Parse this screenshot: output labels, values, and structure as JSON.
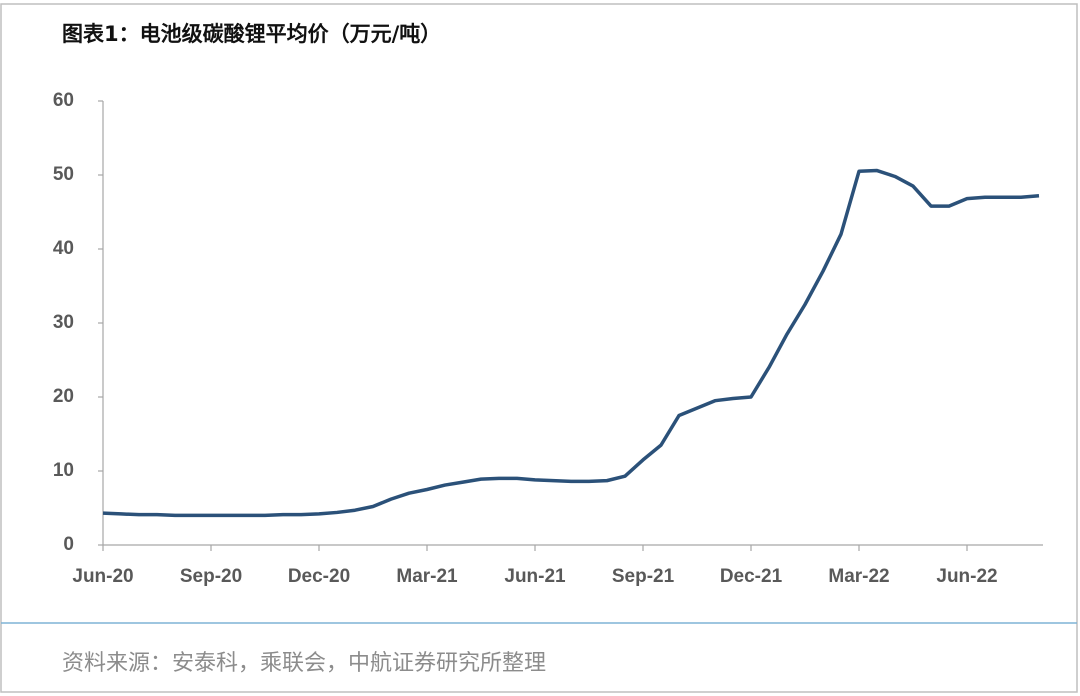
{
  "chart_data": {
    "type": "line",
    "title": "图表1：电池级碳酸锂平均价（万元/吨）",
    "source": "资料来源：安泰科，乘联会，中航证券研究所整理",
    "categories": [
      "Jun-20",
      null,
      null,
      null,
      null,
      null,
      "Sep-20",
      null,
      null,
      null,
      null,
      null,
      "Dec-20",
      null,
      null,
      null,
      null,
      null,
      "Mar-21",
      null,
      null,
      null,
      null,
      null,
      "Jun-21",
      null,
      null,
      null,
      null,
      null,
      "Sep-21",
      null,
      null,
      null,
      null,
      null,
      "Dec-21",
      null,
      null,
      null,
      null,
      null,
      "Mar-22",
      null,
      null,
      null,
      null,
      null,
      "Jun-22",
      null,
      null,
      null,
      null
    ],
    "series": [
      {
        "color": "#2b5179",
        "values": [
          4.3,
          4.2,
          4.1,
          4.1,
          4.0,
          4.0,
          4.0,
          4.0,
          4.0,
          4.0,
          4.1,
          4.1,
          4.2,
          4.4,
          4.7,
          5.2,
          6.2,
          7.0,
          7.5,
          8.1,
          8.5,
          8.9,
          9.0,
          9.0,
          8.8,
          8.7,
          8.6,
          8.6,
          8.7,
          9.3,
          11.5,
          13.5,
          17.5,
          18.5,
          19.5,
          19.8,
          20.0,
          24.0,
          28.5,
          32.5,
          37.0,
          42.0,
          50.5,
          50.6,
          49.8,
          48.5,
          45.8,
          45.8,
          46.8,
          47.0,
          47.0,
          47.0,
          47.2
        ]
      }
    ],
    "ylim": [
      0,
      60
    ],
    "yticks": [
      0,
      10,
      20,
      30,
      40,
      50,
      60
    ]
  }
}
